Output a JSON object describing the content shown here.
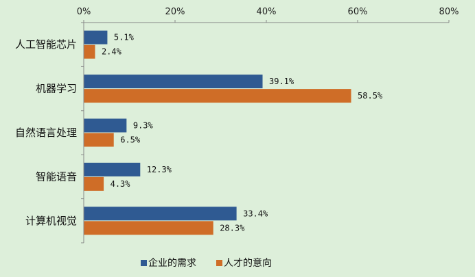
{
  "chart_data": {
    "type": "bar",
    "orientation": "horizontal",
    "categories": [
      "人工智能芯片",
      "机器学习",
      "自然语言处理",
      "智能语音",
      "计算机视觉"
    ],
    "series": [
      {
        "name": "企业的需求",
        "values": [
          5.1,
          39.1,
          9.3,
          12.3,
          33.4
        ],
        "color": "#2f5a92"
      },
      {
        "name": "人才的意向",
        "values": [
          2.4,
          58.5,
          6.5,
          4.3,
          28.3
        ],
        "color": "#cf6d27"
      }
    ],
    "x_ticks": [
      "0%",
      "20%",
      "40%",
      "60%",
      "80%"
    ],
    "xlim": [
      0,
      80
    ],
    "x_axis_position": "top",
    "grid": false,
    "legend_position": "bottom",
    "data_labels": [
      [
        "5.1%",
        "39.1%",
        "9.3%",
        "12.3%",
        "33.4%"
      ],
      [
        "2.4%",
        "58.5%",
        "6.5%",
        "4.3%",
        "28.3%"
      ]
    ]
  }
}
